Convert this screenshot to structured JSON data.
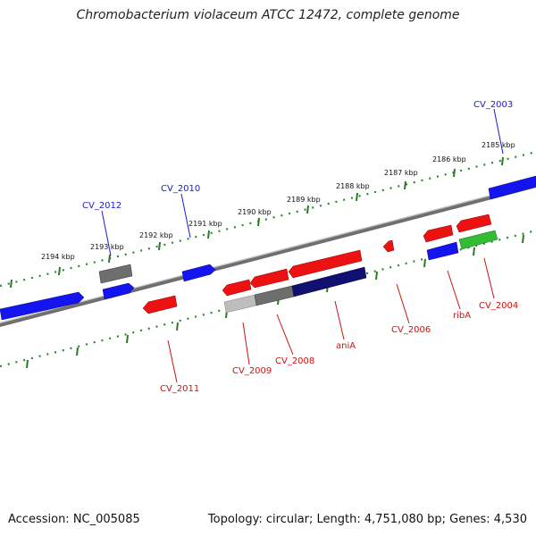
{
  "title": "Chromobacterium violaceum ATCC 12472, complete genome",
  "accession": "Accession: NC_005085",
  "summary": "Topology: circular; Length: 4,751,080 bp; Genes: 4,530",
  "ruler_ticks": [
    "2194 kbp",
    "2193 kbp",
    "2192 kbp",
    "2191 kbp",
    "2190 kbp",
    "2189 kbp",
    "2188 kbp",
    "2187 kbp",
    "2186 kbp",
    "2185 kbp"
  ],
  "upper_genes": [
    "CV_2012",
    "CV_2010",
    "CV_2003"
  ],
  "lower_genes": [
    "CV_2011",
    "CV_2009",
    "CV_2008",
    "aniA",
    "CV_2006",
    "ribA",
    "CV_2004"
  ],
  "colors": {
    "upper_label": "#1a1acc",
    "lower_label": "#cc1111",
    "tick": "#2a7a2a",
    "backbone": "#7f7f7f",
    "blue": "#1414ee",
    "red": "#ee1111",
    "grey": "#6e6e6e",
    "navy": "#101070",
    "light_grey": "#bdbdbd",
    "green": "#33bb33"
  }
}
